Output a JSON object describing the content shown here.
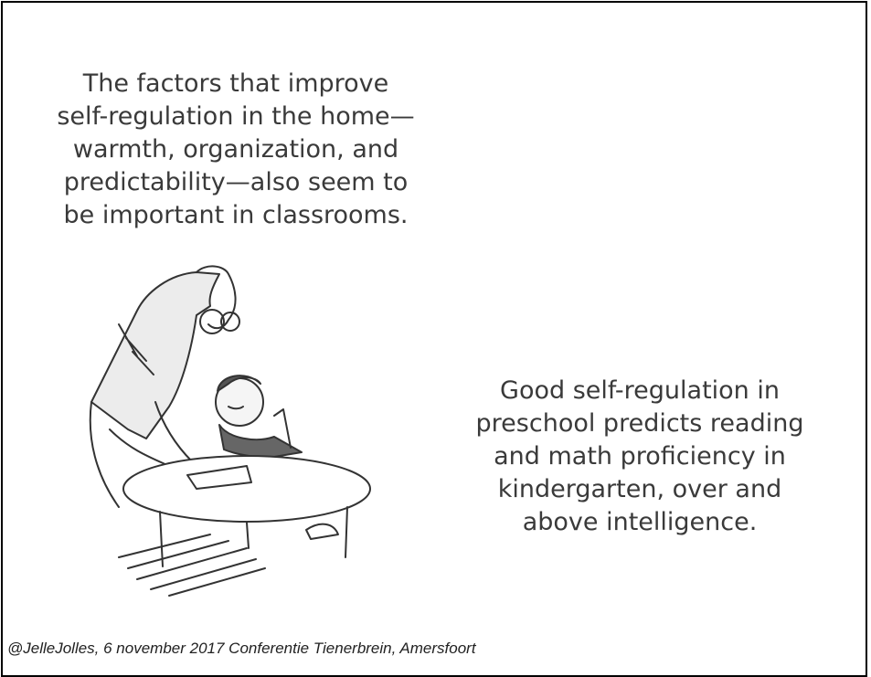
{
  "slide": {
    "top_text": {
      "lines": [
        "The factors that improve",
        "self-regulation in the home—",
        "warmth, organization, and",
        "predictability—also seem to",
        "be important in classrooms."
      ]
    },
    "right_text": {
      "lines": [
        "Good self-regulation in",
        "preschool predicts reading",
        "and math proficiency in",
        "kindergarten, over and",
        "above intelligence."
      ]
    },
    "caption": "@JelleJolles, 6 november 2017 Conferentie Tienerbrein, Amersfoort"
  }
}
